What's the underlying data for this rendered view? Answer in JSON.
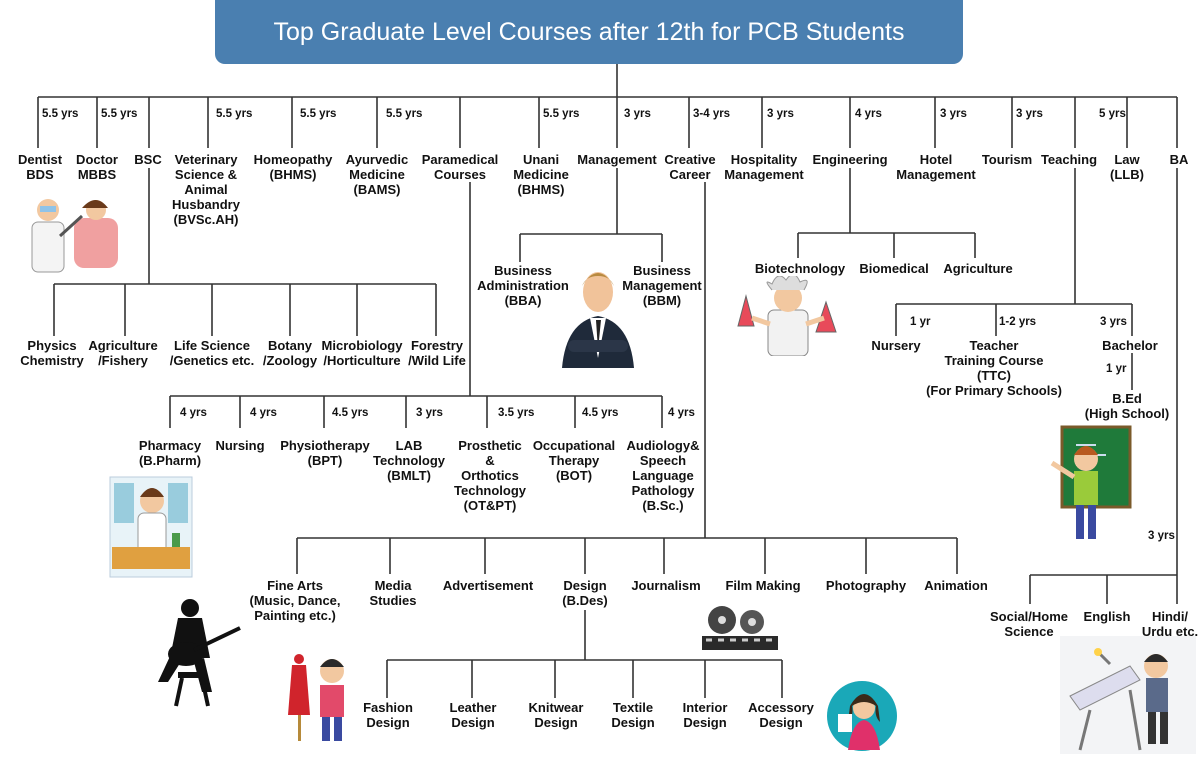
{
  "title": "Top Graduate Level Courses after 12th for PCB Students",
  "top_courses": [
    {
      "label": "Dentist\nBDS",
      "duration": "5.5 yrs"
    },
    {
      "label": "Doctor\nMBBS",
      "duration": "5.5 yrs"
    },
    {
      "label": "BSC",
      "duration": ""
    },
    {
      "label": "Veterinary\nScience &\nAnimal\nHusbandry\n(BVSc.AH)",
      "duration": "5.5 yrs"
    },
    {
      "label": "Homeopathy\n(BHMS)",
      "duration": "5.5 yrs"
    },
    {
      "label": "Ayurvedic\nMedicine\n(BAMS)",
      "duration": "5.5 yrs"
    },
    {
      "label": "Paramedical\nCourses",
      "duration": ""
    },
    {
      "label": "Unani\nMedicine\n(BHMS)",
      "duration": "5.5 yrs"
    },
    {
      "label": "Management",
      "duration": "3 yrs"
    },
    {
      "label": "Creative\nCareer",
      "duration": "3-4 yrs"
    },
    {
      "label": "Hospitality\nManagement",
      "duration": "3 yrs"
    },
    {
      "label": "Engineering",
      "duration": "4 yrs"
    },
    {
      "label": "Hotel\nManagement",
      "duration": "3 yrs"
    },
    {
      "label": "Tourism",
      "duration": "3 yrs"
    },
    {
      "label": "Teaching",
      "duration": ""
    },
    {
      "label": "Law\n(LLB)",
      "duration": "5 yrs"
    },
    {
      "label": "BA",
      "duration": ""
    }
  ],
  "bsc_subjects": [
    "Physics\nChemistry",
    "Agriculture\n/Fishery",
    "Life Science\n/Genetics etc.",
    "Botany\n/Zoology",
    "Microbiology\n/Horticulture",
    "Forestry\n/Wild Life"
  ],
  "management_branches": [
    "Business\nAdministration\n(BBA)",
    "Business\nManagement\n(BBM)"
  ],
  "engineering_branches": [
    "Biotechnology",
    "Biomedical",
    "Agriculture"
  ],
  "teaching_branches": [
    {
      "label": "Nursery",
      "duration": "1 yr"
    },
    {
      "label": "Teacher\nTraining Course\n(TTC)\n(For Primary Schools)",
      "duration": "1-2 yrs"
    },
    {
      "label": "Bachelor",
      "duration": "3 yrs"
    }
  ],
  "bed": {
    "label": "B.Ed\n(High School)",
    "duration": "1 yr"
  },
  "paramedical_courses": [
    {
      "label": "Pharmacy\n(B.Pharm)",
      "duration": "4 yrs"
    },
    {
      "label": "Nursing",
      "duration": "4 yrs"
    },
    {
      "label": "Physiotherapy\n(BPT)",
      "duration": "4.5 yrs"
    },
    {
      "label": "LAB\nTechnology\n(BMLT)",
      "duration": "3 yrs"
    },
    {
      "label": "Prosthetic\n&\nOrthotics\nTechnology\n(OT&PT)",
      "duration": "3.5 yrs"
    },
    {
      "label": "Occupational\nTherapy\n(BOT)",
      "duration": "4.5 yrs"
    },
    {
      "label": "Audiology&\nSpeech\nLanguage\nPathology\n(B.Sc.)",
      "duration": "4 yrs"
    }
  ],
  "creative_courses": [
    "Fine Arts\n(Music, Dance,\nPainting  etc.)",
    "Media\nStudies",
    "Advertisement",
    "Design\n(B.Des)",
    "Journalism",
    "Film Making",
    "Photography",
    "Animation"
  ],
  "design_courses": [
    "Fashion\nDesign",
    "Leather\nDesign",
    "Knitwear\nDesign",
    "Textile\nDesign",
    "Interior\nDesign",
    "Accessory\nDesign"
  ],
  "ba_courses": {
    "duration": "3 yrs",
    "items": [
      "Social/Home\nScience",
      "English",
      "Hindi/\nUrdu etc."
    ]
  },
  "colors": {
    "title_bg": "#4a7fb0",
    "title_text": "#ffffff",
    "line": "#333333"
  },
  "illustrations": [
    "dentist-icon",
    "businessman-icon",
    "scientist-icon",
    "teacher-icon",
    "pharmacist-icon",
    "guitarist-icon",
    "fashion-designer-icon",
    "film-reel-icon",
    "designer-woman-icon",
    "architect-desk-icon"
  ]
}
